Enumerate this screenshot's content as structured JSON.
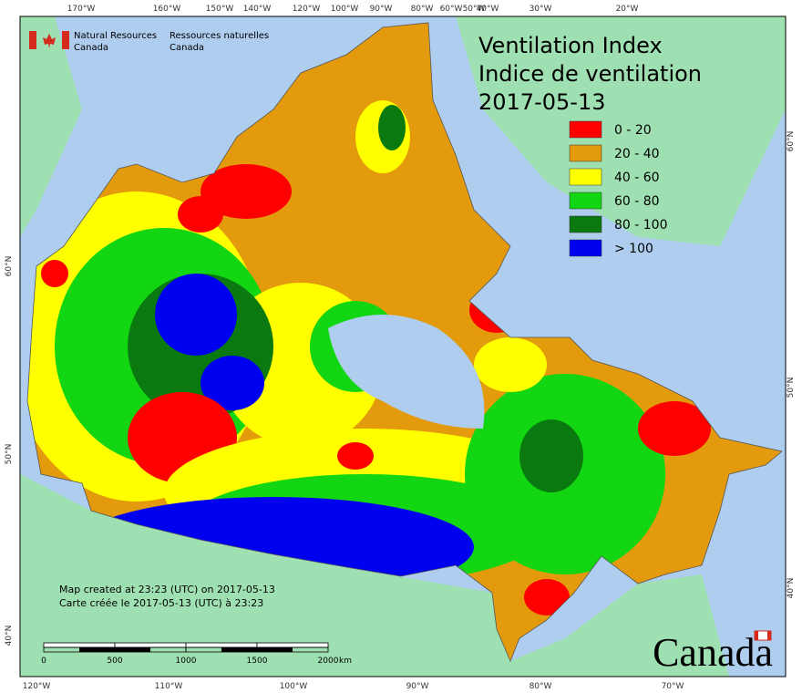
{
  "agency_en": [
    "Natural Resources",
    "Canada"
  ],
  "agency_fr": [
    "Ressources naturelles",
    "Canada"
  ],
  "title": [
    "Ventilation Index",
    "Indice de ventilation",
    "2017-05-13"
  ],
  "legend": [
    {
      "label": "0 - 20",
      "color": "#ff0000"
    },
    {
      "label": "20 - 40",
      "color": "#e39a0c"
    },
    {
      "label": "40 - 60",
      "color": "#ffff00"
    },
    {
      "label": "60 - 80",
      "color": "#13d613"
    },
    {
      "label": "80 - 100",
      "color": "#0a7a10"
    },
    {
      "label": "> 100",
      "color": "#0000f0"
    }
  ],
  "top_longitudes": [
    "170°W",
    "160°W",
    "150°W",
    "140°W",
    "120°W",
    "100°W",
    "90°W",
    "80°W",
    "60°W",
    "50°W",
    "40°W",
    "30°W",
    "20°W"
  ],
  "bottom_longitudes": [
    "120°W",
    "110°W",
    "100°W",
    "90°W",
    "80°W",
    "70°W"
  ],
  "left_latitudes": [
    "60°N",
    "50°N",
    "40°N"
  ],
  "right_latitudes": [
    "60°N",
    "50°N",
    "40°N"
  ],
  "notes": [
    "Map created at 23:23 (UTC) on 2017-05-13",
    "Carte créée le 2017-05-13 (UTC) à 23:23"
  ],
  "scale": {
    "labels": [
      "0",
      "500",
      "1000",
      "1500",
      "2000"
    ],
    "unit": "km"
  },
  "wordmark": "Canada"
}
